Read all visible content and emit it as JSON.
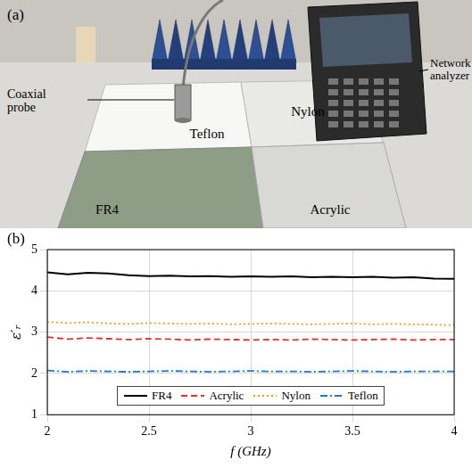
{
  "photo": {
    "panel": "(a)",
    "labels": {
      "probe": "Coaxial probe",
      "analyzer": "Network analyzer",
      "top_left": "Teflon",
      "top_right": "Nylon",
      "bottom_left": "FR4",
      "bottom_right": "Acrylic"
    }
  },
  "chart_data": {
    "type": "line",
    "panel": "(b)",
    "x_label": "f (GHz)",
    "y_label": "ε′ᵣ",
    "x": [
      2.0,
      2.1,
      2.2,
      2.3,
      2.4,
      2.5,
      2.6,
      2.7,
      2.8,
      2.9,
      3.0,
      3.1,
      3.2,
      3.3,
      3.4,
      3.5,
      3.6,
      3.7,
      3.8,
      3.9,
      4.0
    ],
    "series": [
      {
        "name": "FR4",
        "color": "#000000",
        "line_style": "solid",
        "values": [
          4.45,
          4.4,
          4.44,
          4.42,
          4.38,
          4.36,
          4.37,
          4.35,
          4.36,
          4.34,
          4.35,
          4.34,
          4.35,
          4.33,
          4.34,
          4.33,
          4.34,
          4.32,
          4.33,
          4.3,
          4.29
        ]
      },
      {
        "name": "Acrylic",
        "color": "#e03030",
        "line_style": "dashed",
        "values": [
          2.88,
          2.83,
          2.86,
          2.84,
          2.82,
          2.84,
          2.83,
          2.81,
          2.83,
          2.82,
          2.81,
          2.82,
          2.81,
          2.83,
          2.82,
          2.81,
          2.82,
          2.83,
          2.81,
          2.82,
          2.82
        ]
      },
      {
        "name": "Nylon",
        "color": "#f0a020",
        "line_style": "dotted",
        "values": [
          3.25,
          3.22,
          3.24,
          3.21,
          3.2,
          3.22,
          3.21,
          3.2,
          3.21,
          3.19,
          3.2,
          3.21,
          3.2,
          3.19,
          3.2,
          3.21,
          3.19,
          3.2,
          3.19,
          3.18,
          3.17
        ]
      },
      {
        "name": "Teflon",
        "color": "#1f77d4",
        "line_style": "dashdot",
        "values": [
          2.07,
          2.04,
          2.06,
          2.05,
          2.04,
          2.05,
          2.06,
          2.05,
          2.04,
          2.05,
          2.06,
          2.05,
          2.05,
          2.04,
          2.05,
          2.06,
          2.05,
          2.04,
          2.05,
          2.05,
          2.05
        ]
      }
    ],
    "xlim": [
      2,
      4
    ],
    "xticks": [
      2,
      2.5,
      3,
      3.5,
      4
    ],
    "ylim": [
      1,
      5
    ],
    "yticks": [
      1,
      2,
      3,
      4,
      5
    ],
    "grid": true,
    "legend": "lower center"
  }
}
